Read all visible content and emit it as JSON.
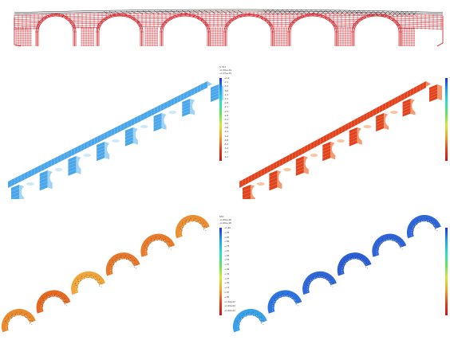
{
  "colors": {
    "mesh_red": "#d2141c",
    "mesh_black": "#1a1a1a",
    "fem_blue": "#4aa6ea",
    "fem_red": "#e2421c",
    "arch_orange": "#ea7a28",
    "arch_blue": "#2f66d8"
  },
  "legends": {
    "top_right": {
      "title": "S, S11",
      "sub": [
        "+1.50e+01",
        "+1.27e+01"
      ],
      "ticks": [
        "+1.0",
        "-2.1",
        "-5.4",
        "-8.6",
        "-1.2",
        "-1.5",
        "-1.8",
        "-2.1",
        "-2.5",
        "-2.8",
        "-3.1",
        "-3.5",
        "-3.8",
        "-4.1",
        "-4.4",
        "-4.8",
        "-5.1",
        "-5.4",
        "-5.7",
        "-6.1"
      ]
    },
    "bottom_left": {
      "title": "SDV",
      "sub": [
        "+1.00e+00",
        "+1.00e+00"
      ],
      "ticks": [
        "+1.00",
        "+.93",
        "+.87",
        "+.80",
        "+.73",
        "+.67",
        "+.60",
        "+.53",
        "+.47",
        "+.40",
        "+.33",
        "+.27",
        "+.20",
        "+.13",
        "+.07",
        "+.00",
        "+1.00e-02",
        "+1.00e-02",
        "+1.00e-02"
      ]
    }
  },
  "icons": {
    "mesh": "bridge-mesh-wireframe",
    "model_blue": "bridge-fem-model-blue-contour",
    "model_red": "bridge-fem-model-red-contour",
    "arches_orange": "arch-damage-contour-orange",
    "arches_blue": "arch-damage-contour-blue"
  }
}
